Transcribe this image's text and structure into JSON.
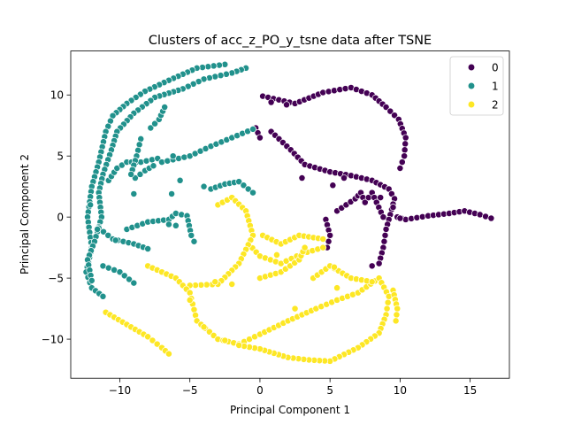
{
  "chart_data": {
    "type": "scatter",
    "title": "Clusters of acc_z_PO_y_tsne data after TSNE",
    "xlabel": "Principal Component 1",
    "ylabel": "Principal Component 2",
    "xlim": [
      -13.5,
      17.8
    ],
    "ylim": [
      -13.2,
      13.6
    ],
    "xticks": [
      -10,
      -5,
      0,
      5,
      10,
      15
    ],
    "xtick_labels": [
      "−10",
      "−5",
      "0",
      "5",
      "10",
      "15"
    ],
    "yticks": [
      -10,
      -5,
      0,
      5,
      10
    ],
    "ytick_labels": [
      "−10",
      "−5",
      "0",
      "5",
      "10"
    ],
    "grid": false,
    "legend_position": "top-right",
    "series": [
      {
        "name": "0",
        "color": "#440154",
        "paths": [
          [
            [
              0.2,
              9.9
            ],
            [
              2.5,
              9.3
            ],
            [
              4.5,
              10.2
            ],
            [
              6.5,
              10.6
            ],
            [
              8.0,
              10.0
            ],
            [
              9.0,
              9.0
            ],
            [
              9.9,
              8.0
            ],
            [
              10.4,
              6.5
            ],
            [
              10.3,
              5.0
            ],
            [
              10.0,
              4.0
            ]
          ],
          [
            [
              0.8,
              7.0
            ],
            [
              2.2,
              5.5
            ],
            [
              3.2,
              4.3
            ],
            [
              5.0,
              3.7
            ],
            [
              6.5,
              3.4
            ],
            [
              8.0,
              3.0
            ],
            [
              9.2,
              2.3
            ],
            [
              9.6,
              1.5
            ],
            [
              9.3,
              0.2
            ],
            [
              9.0,
              -1.0
            ],
            [
              8.8,
              -2.5
            ],
            [
              8.5,
              -3.8
            ],
            [
              8.0,
              -4.0
            ]
          ],
          [
            [
              5.5,
              0.5
            ],
            [
              6.8,
              1.5
            ],
            [
              7.2,
              2.0
            ],
            [
              7.5,
              1.2
            ],
            [
              8.0,
              2.0
            ],
            [
              8.8,
              0.0
            ]
          ],
          [
            [
              9.8,
              0.0
            ],
            [
              10.4,
              -0.2
            ],
            [
              12.0,
              0.1
            ],
            [
              13.5,
              0.3
            ],
            [
              14.6,
              0.5
            ],
            [
              15.7,
              0.2
            ],
            [
              16.5,
              -0.1
            ]
          ],
          [
            [
              4.7,
              -0.2
            ],
            [
              5.0,
              -1.5
            ],
            [
              4.8,
              -2.5
            ]
          ],
          [
            [
              -0.3,
              7.3
            ],
            [
              0.0,
              6.5
            ]
          ]
        ],
        "points": [
          [
            0.8,
            9.4
          ],
          [
            1.9,
            9.2
          ],
          [
            3.0,
            3.2
          ],
          [
            5.2,
            2.6
          ],
          [
            6.0,
            3.2
          ],
          [
            8.6,
            1.6
          ],
          [
            9.5,
            0.8
          ],
          [
            10.0,
            -0.1
          ]
        ]
      },
      {
        "name": "1",
        "color": "#21918c",
        "paths": [
          [
            [
              -2.5,
              12.5
            ],
            [
              -4.5,
              12.2
            ],
            [
              -6.5,
              11.2
            ],
            [
              -8.2,
              10.3
            ],
            [
              -9.5,
              9.3
            ],
            [
              -10.5,
              8.3
            ],
            [
              -11.0,
              7.0
            ],
            [
              -11.5,
              4.5
            ],
            [
              -12.0,
              2.5
            ],
            [
              -12.3,
              0.0
            ],
            [
              -12.0,
              -2.5
            ],
            [
              -12.4,
              -4.5
            ],
            [
              -12.0,
              -5.8
            ],
            [
              -11.2,
              -6.5
            ]
          ],
          [
            [
              -1.0,
              12.2
            ],
            [
              -2.0,
              11.8
            ],
            [
              -4.0,
              11.3
            ],
            [
              -5.5,
              10.5
            ],
            [
              -7.5,
              9.8
            ],
            [
              -9.0,
              8.5
            ],
            [
              -10.2,
              7.0
            ],
            [
              -10.6,
              5.5
            ],
            [
              -11.2,
              3.5
            ],
            [
              -11.5,
              2.0
            ],
            [
              -11.3,
              0.0
            ],
            [
              -11.8,
              -2.0
            ],
            [
              -12.3,
              -3.5
            ],
            [
              -12.0,
              -5.2
            ]
          ],
          [
            [
              -10.8,
              3.0
            ],
            [
              -10.2,
              4.0
            ],
            [
              -9.5,
              4.5
            ],
            [
              -8.5,
              4.5
            ],
            [
              -7.3,
              4.8
            ]
          ],
          [
            [
              -7.0,
              4.5
            ],
            [
              -5.0,
              5.0
            ],
            [
              -3.5,
              5.8
            ],
            [
              -2.0,
              6.5
            ],
            [
              -0.5,
              7.2
            ]
          ],
          [
            [
              -3.5,
              2.3
            ],
            [
              -2.5,
              2.7
            ],
            [
              -1.5,
              2.9
            ],
            [
              -0.5,
              2.0
            ]
          ],
          [
            [
              -9.5,
              -1.0
            ],
            [
              -8.0,
              -0.4
            ],
            [
              -6.5,
              -0.2
            ],
            [
              -6.0,
              0.3
            ],
            [
              -5.2,
              0.1
            ],
            [
              -4.9,
              -1.5
            ],
            [
              -4.7,
              -2.0
            ]
          ],
          [
            [
              -11.5,
              -0.9
            ],
            [
              -10.5,
              -1.8
            ],
            [
              -9.0,
              -2.2
            ],
            [
              -8.0,
              -2.6
            ]
          ],
          [
            [
              -11.2,
              -4.0
            ],
            [
              -10.0,
              -4.5
            ],
            [
              -9.0,
              -5.4
            ]
          ],
          [
            [
              -8.9,
              3.2
            ],
            [
              -8.2,
              3.8
            ],
            [
              -7.6,
              4.2
            ]
          ],
          [
            [
              -8.5,
              6.4
            ],
            [
              -8.8,
              5.0
            ],
            [
              -9.2,
              3.5
            ]
          ],
          [
            [
              -7.8,
              7.3
            ],
            [
              -7.2,
              8.0
            ],
            [
              -6.8,
              9.0
            ]
          ]
        ],
        "points": [
          [
            -12.1,
            1.0
          ],
          [
            -11.6,
            -1.0
          ],
          [
            -9.0,
            1.9
          ],
          [
            -6.3,
            1.9
          ],
          [
            -6.0,
            -0.7
          ],
          [
            -5.7,
            3.0
          ],
          [
            -4.0,
            2.5
          ],
          [
            -6.2,
            5.0
          ],
          [
            -10.3,
            -1.9
          ],
          [
            -6.5,
            -0.6
          ]
        ]
      },
      {
        "name": "2",
        "color": "#fde725",
        "paths": [
          [
            [
              0.2,
              -1.5
            ],
            [
              1.5,
              -2.2
            ],
            [
              2.8,
              -1.5
            ],
            [
              4.5,
              -1.8
            ]
          ],
          [
            [
              -0.8,
              -2.2
            ],
            [
              0.0,
              -3.2
            ],
            [
              1.5,
              -3.8
            ],
            [
              3.0,
              -3.0
            ],
            [
              4.5,
              -2.5
            ]
          ],
          [
            [
              -3.0,
              1.0
            ],
            [
              -2.0,
              1.6
            ],
            [
              -1.0,
              0.5
            ],
            [
              -0.5,
              -1.5
            ],
            [
              -1.5,
              -3.8
            ],
            [
              -3.0,
              -5.5
            ],
            [
              -5.0,
              -5.6
            ]
          ],
          [
            [
              -11.0,
              -7.8
            ],
            [
              -9.5,
              -8.8
            ],
            [
              -8.0,
              -9.8
            ],
            [
              -7.0,
              -10.7
            ],
            [
              -6.5,
              -11.2
            ]
          ],
          [
            [
              -8.0,
              -4.0
            ],
            [
              -6.0,
              -5.0
            ],
            [
              -5.0,
              -6.2
            ],
            [
              -4.5,
              -8.5
            ],
            [
              -3.0,
              -10.0
            ],
            [
              -1.5,
              -10.4
            ],
            [
              0.0,
              -9.6
            ],
            [
              2.0,
              -8.5
            ],
            [
              4.0,
              -7.5
            ],
            [
              5.5,
              -6.8
            ],
            [
              7.0,
              -6.2
            ],
            [
              8.5,
              -5.0
            ],
            [
              9.2,
              -6.5
            ],
            [
              9.0,
              -8.0
            ],
            [
              8.5,
              -9.5
            ],
            [
              7.0,
              -10.7
            ],
            [
              5.0,
              -11.8
            ],
            [
              3.5,
              -11.7
            ],
            [
              2.0,
              -11.5
            ],
            [
              0.0,
              -10.8
            ],
            [
              -1.5,
              -10.5
            ]
          ],
          [
            [
              3.8,
              -5.0
            ],
            [
              5.0,
              -4.0
            ],
            [
              6.5,
              -5.0
            ],
            [
              8.0,
              -5.3
            ]
          ],
          [
            [
              0.0,
              -5.0
            ],
            [
              1.5,
              -4.5
            ],
            [
              2.8,
              -3.5
            ],
            [
              3.2,
              -2.5
            ]
          ],
          [
            [
              9.5,
              -6.0
            ],
            [
              9.8,
              -7.5
            ],
            [
              9.7,
              -8.5
            ]
          ]
        ],
        "points": [
          [
            -2.0,
            -5.5
          ],
          [
            -3.2,
            -5.3
          ],
          [
            -5.0,
            -6.8
          ],
          [
            1.2,
            -3.1
          ],
          [
            5.5,
            -5.8
          ],
          [
            5.3,
            -4.1
          ],
          [
            2.5,
            -7.5
          ],
          [
            -4.0,
            -9.0
          ],
          [
            -2.5,
            -10.1
          ]
        ]
      }
    ]
  }
}
